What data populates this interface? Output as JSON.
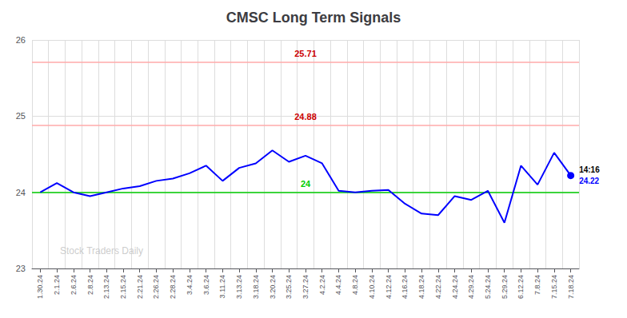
{
  "chart_data": {
    "type": "line",
    "title": "CMSC Long Term Signals",
    "categories": [
      "1.30.24",
      "2.1.24",
      "2.6.24",
      "2.8.24",
      "2.13.24",
      "2.15.24",
      "2.21.24",
      "2.26.24",
      "2.28.24",
      "3.4.24",
      "3.6.24",
      "3.11.24",
      "3.13.24",
      "3.18.24",
      "3.20.24",
      "3.25.24",
      "3.27.24",
      "4.2.24",
      "4.4.24",
      "4.8.24",
      "4.10.24",
      "4.12.24",
      "4.16.24",
      "4.18.24",
      "4.22.24",
      "4.24.24",
      "4.29.24",
      "5.24.24",
      "5.29.24",
      "6.12.24",
      "7.8.24",
      "7.15.24",
      "7.18.24"
    ],
    "values": [
      24.0,
      24.12,
      24.0,
      23.95,
      24.0,
      24.05,
      24.08,
      24.15,
      24.18,
      24.25,
      24.35,
      24.15,
      24.32,
      24.38,
      24.55,
      24.4,
      24.48,
      24.38,
      24.02,
      24.0,
      24.02,
      24.03,
      23.85,
      23.72,
      23.7,
      23.95,
      23.9,
      24.02,
      23.6,
      24.35,
      24.1,
      24.52,
      24.22
    ],
    "color": "blue",
    "ylim": [
      23,
      26
    ],
    "yticks": [
      23,
      24,
      25,
      26
    ],
    "grid": true,
    "reference_lines": [
      {
        "value": 25.71,
        "label": "25.71",
        "color": "#ffaaaa",
        "label_color": "#cc0000"
      },
      {
        "value": 24.88,
        "label": "24.88",
        "color": "#ffaaaa",
        "label_color": "#cc0000"
      },
      {
        "value": 24.0,
        "label": "24",
        "color": "#00cc00",
        "label_color": "#00cc00"
      }
    ],
    "annotations": [
      {
        "category": "7.18.24",
        "texts": [
          "14:16",
          "24.22"
        ]
      }
    ],
    "watermark": "Stock Traders Daily"
  }
}
